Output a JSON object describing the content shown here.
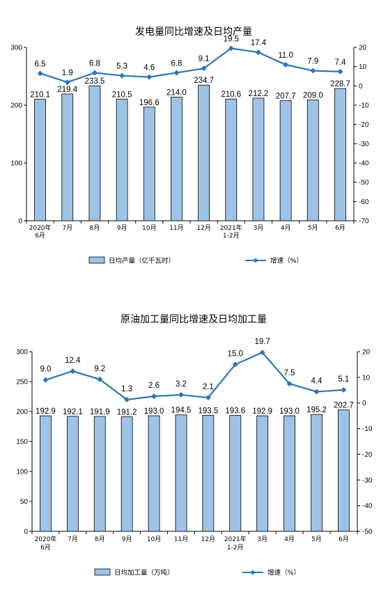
{
  "chart_data": [
    {
      "type": "bar+line",
      "title": "发电量同比增速及日均产量",
      "categories": [
        "2020年\n6月",
        "7月",
        "8月",
        "9月",
        "10月",
        "11月",
        "12月",
        "2021年\n1-2月",
        "3月",
        "4月",
        "5月",
        "6月"
      ],
      "series": [
        {
          "name": "日均产量（亿千瓦时）",
          "type": "bar",
          "axis": "left",
          "values": [
            210.1,
            219.4,
            233.5,
            210.5,
            196.6,
            214.0,
            234.7,
            210.6,
            212.2,
            207.7,
            209.0,
            228.7
          ],
          "labels": [
            "210.1",
            "219.4",
            "233.5",
            "210.5",
            "196.6",
            "214.0",
            "234.7",
            "210.6",
            "212.2",
            "207.7",
            "209.0",
            "228.7"
          ]
        },
        {
          "name": "增速（%）",
          "type": "line",
          "axis": "right",
          "values": [
            6.5,
            1.9,
            6.8,
            5.3,
            4.6,
            6.8,
            9.1,
            19.5,
            17.4,
            11.0,
            7.9,
            7.4
          ],
          "labels": [
            "6.5",
            "1.9",
            "6.8",
            "5.3",
            "4.6",
            "6.8",
            "9.1",
            "19.5",
            "17.4",
            "11.0",
            "7.9",
            "7.4"
          ]
        }
      ],
      "left_axis": {
        "min": 0,
        "max": 300,
        "ticks": [
          "0",
          "100",
          "200",
          "300"
        ]
      },
      "right_axis": {
        "min": -70,
        "max": 20,
        "ticks": [
          "-70",
          "-60",
          "-50",
          "-40",
          "-30",
          "-20",
          "-10",
          "0",
          "10",
          "20"
        ]
      },
      "legend_position": "bottom",
      "colors": {
        "bar_fill": "#9dc3e6",
        "bar_stroke": "#000000",
        "line": "#2e75b6"
      }
    },
    {
      "type": "bar+line",
      "title": "原油加工量同比增速及日均加工量",
      "categories": [
        "2020年\n6月",
        "7月",
        "8月",
        "9月",
        "10月",
        "11月",
        "12月",
        "2021年\n1-2月",
        "3月",
        "4月",
        "5月",
        "6月"
      ],
      "series": [
        {
          "name": "日均加工量（万吨）",
          "type": "bar",
          "axis": "left",
          "values": [
            192.9,
            192.1,
            191.9,
            191.2,
            193.0,
            194.5,
            193.5,
            193.6,
            192.9,
            193.0,
            195.2,
            202.7
          ],
          "labels": [
            "192.9",
            "192.1",
            "191.9",
            "191.2",
            "193.0",
            "194.5",
            "193.5",
            "193.6",
            "192.9",
            "193.0",
            "195.2",
            "202.7"
          ]
        },
        {
          "name": "增速（%）",
          "type": "line",
          "axis": "right",
          "values": [
            9.0,
            12.4,
            9.2,
            1.3,
            2.6,
            3.2,
            2.1,
            15.0,
            19.7,
            7.5,
            4.4,
            5.1
          ],
          "labels": [
            "9.0",
            "12.4",
            "9.2",
            "1.3",
            "2.6",
            "3.2",
            "2.1",
            "15.0",
            "19.7",
            "7.5",
            "4.4",
            "5.1"
          ]
        }
      ],
      "left_axis": {
        "min": 0,
        "max": 300,
        "ticks": [
          "0",
          "50",
          "100",
          "150",
          "200",
          "250",
          "300"
        ]
      },
      "right_axis": {
        "min": -50,
        "max": 20,
        "ticks": [
          "-50",
          "-40",
          "-30",
          "-20",
          "-10",
          "0",
          "10",
          "20"
        ]
      },
      "legend_position": "bottom",
      "colors": {
        "bar_fill": "#9dc3e6",
        "bar_stroke": "#000000",
        "line": "#2e75b6"
      }
    }
  ]
}
